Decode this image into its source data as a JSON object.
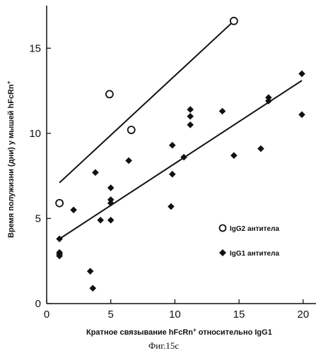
{
  "chart_data": {
    "type": "scatter",
    "xlabel": "Кратное связывание hFcRn",
    "xlabel_sup": "+",
    "xlabel_tail": " относительно IgG1",
    "ylabel": "Время полужизни (дни) у мышей hFcRn",
    "ylabel_sup": "+",
    "xlim": [
      0,
      21
    ],
    "ylim": [
      0,
      17.5
    ],
    "x_ticks": [
      0,
      5,
      10,
      15,
      20
    ],
    "y_ticks": [
      0,
      5,
      10,
      15
    ],
    "series": [
      {
        "name": "IgG2 антитела",
        "marker": "open-circle",
        "color": "#111111",
        "points": [
          [
            1,
            5.9
          ],
          [
            4.9,
            12.3
          ],
          [
            6.6,
            10.2
          ],
          [
            14.6,
            16.6
          ]
        ],
        "trendline": [
          [
            1,
            7.1
          ],
          [
            14.6,
            16.6
          ]
        ]
      },
      {
        "name": "IgG1 антитела",
        "marker": "filled-diamond",
        "color": "#111111",
        "points": [
          [
            1,
            3.8
          ],
          [
            1,
            3.0
          ],
          [
            1,
            2.9
          ],
          [
            1,
            2.8
          ],
          [
            2.1,
            5.5
          ],
          [
            3.4,
            1.9
          ],
          [
            3.6,
            0.9
          ],
          [
            3.8,
            7.7
          ],
          [
            4.2,
            4.9
          ],
          [
            5.0,
            6.8
          ],
          [
            5.0,
            6.1
          ],
          [
            5.0,
            5.9
          ],
          [
            5.0,
            4.9
          ],
          [
            6.4,
            8.4
          ],
          [
            9.7,
            5.7
          ],
          [
            9.8,
            9.3
          ],
          [
            9.8,
            7.6
          ],
          [
            10.7,
            8.6
          ],
          [
            11.2,
            11.4
          ],
          [
            11.2,
            11.0
          ],
          [
            11.2,
            10.5
          ],
          [
            13.7,
            11.3
          ],
          [
            14.6,
            8.7
          ],
          [
            16.7,
            9.1
          ],
          [
            17.3,
            12.1
          ],
          [
            17.3,
            11.9
          ],
          [
            19.9,
            13.5
          ],
          [
            19.9,
            11.1
          ]
        ],
        "trendline": [
          [
            1,
            3.8
          ],
          [
            19.9,
            13.1
          ]
        ]
      }
    ],
    "legend": "right-center",
    "grid": false,
    "caption": "Фиг.15с"
  }
}
